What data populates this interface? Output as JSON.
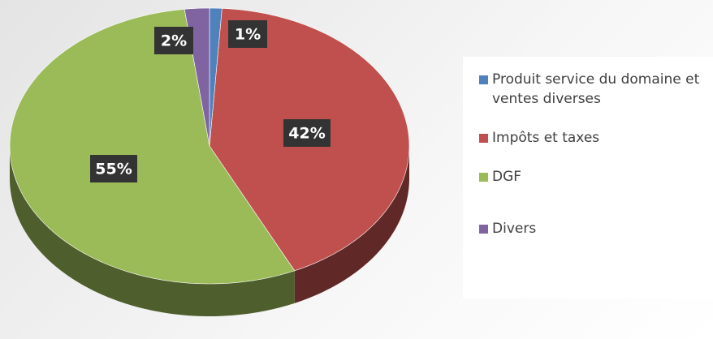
{
  "chart_data": {
    "type": "pie",
    "categories": [
      "Produit service du domaine et ventes diverses",
      "Impôts et taxes",
      "DGF",
      "Divers"
    ],
    "values": [
      1,
      42,
      55,
      2
    ],
    "value_labels": [
      "1%",
      "42%",
      "55%",
      "2%"
    ],
    "colors": [
      "#4f81bd",
      "#c0504d",
      "#9bbb59",
      "#8064a2"
    ],
    "legend": "right"
  }
}
